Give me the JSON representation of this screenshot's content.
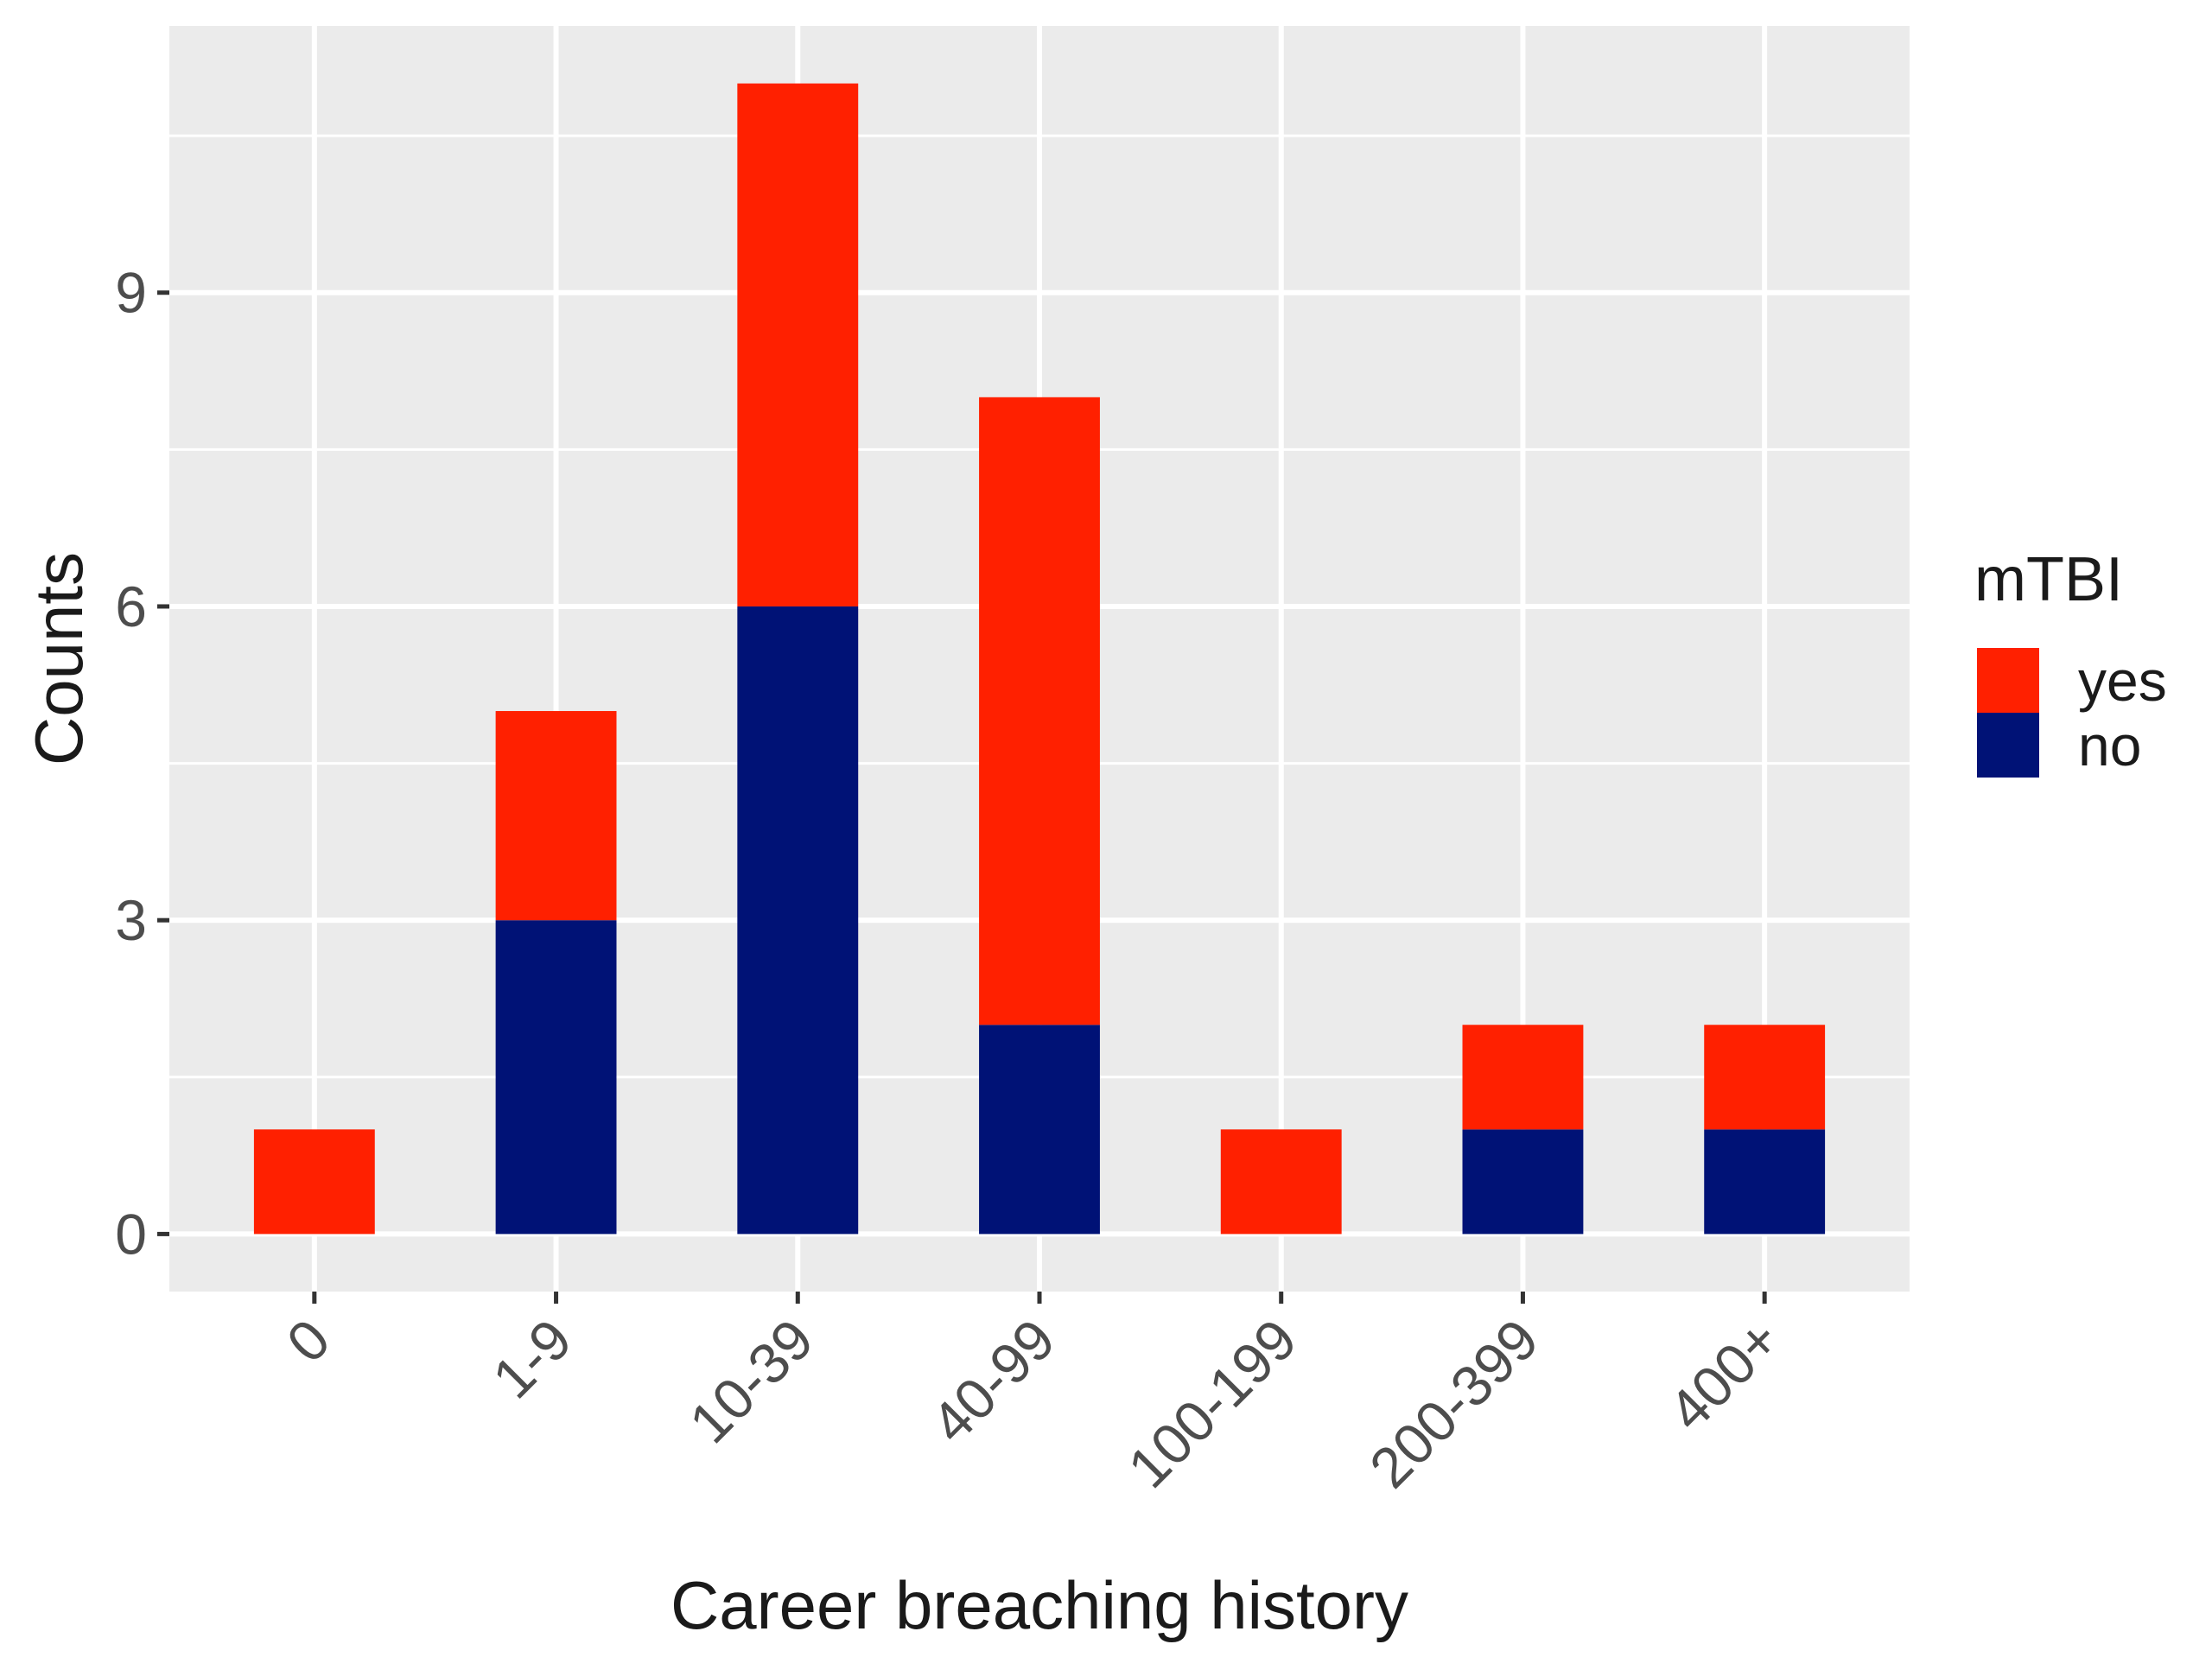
{
  "chart_data": {
    "type": "bar",
    "stacked": true,
    "categories": [
      "0",
      "1-9",
      "10-39",
      "40-99",
      "100-199",
      "200-399",
      "400+"
    ],
    "series": [
      {
        "name": "no",
        "color": "#001276",
        "values": [
          0,
          3,
          6,
          2,
          0,
          1,
          1
        ]
      },
      {
        "name": "yes",
        "color": "#ff2000",
        "values": [
          1,
          2,
          5,
          6,
          1,
          1,
          1
        ]
      }
    ],
    "title": "",
    "xlabel": "Career breaching history",
    "ylabel": "Counts",
    "yticks": [
      0,
      3,
      6,
      9
    ],
    "ylim": [
      -0.55,
      11.55
    ],
    "grid": true,
    "legend": {
      "title": "mTBI",
      "position": "right",
      "entries": [
        {
          "label": "yes",
          "color": "#ff2000"
        },
        {
          "label": "no",
          "color": "#001276"
        }
      ]
    },
    "panel_background": "#ebebeb",
    "grid_color": "#ffffff"
  }
}
